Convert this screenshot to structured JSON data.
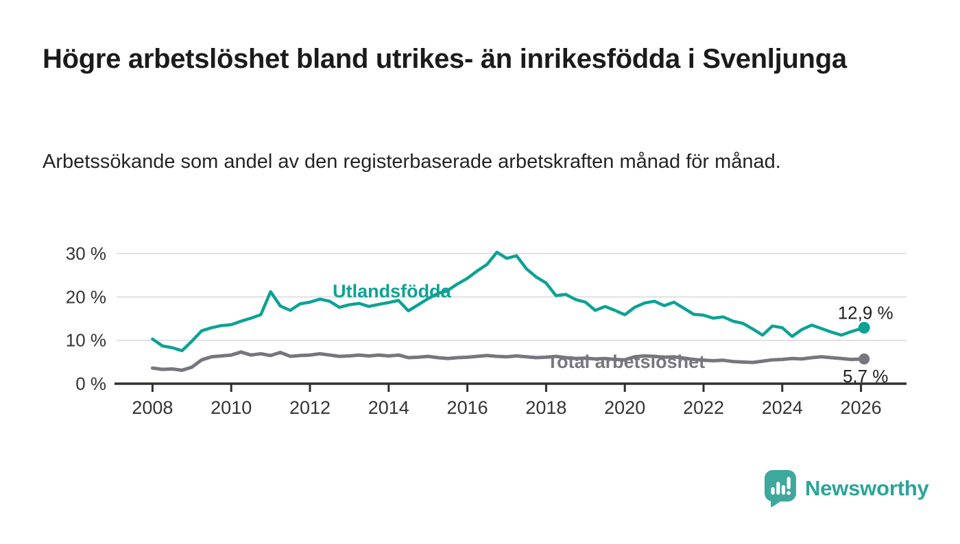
{
  "header": {
    "title": "Högre arbetslöshet bland utrikes- än inrikesfödda i Svenljunga",
    "subtitle": "Arbetssökande som andel av den registerbaserade arbetskraften månad för månad."
  },
  "colors": {
    "accent_teal": "#0ca295",
    "series_gray": "#77757e",
    "grid": "#dadada",
    "axis": "#2f2f2f",
    "axis_text": "#333333",
    "annotation_text": "#1f1f1f",
    "logo_teal": "#3fa89d",
    "logo_text_teal": "#2ba499"
  },
  "chart_data": {
    "type": "line",
    "x_unit": "decimal_year",
    "grid": "horizontal-light",
    "legend_position": "inline-labels",
    "xlim": [
      2007.1,
      2027.2
    ],
    "ylim": [
      0,
      32
    ],
    "x_ticks": [
      2008,
      2010,
      2012,
      2014,
      2016,
      2018,
      2020,
      2022,
      2024,
      2026
    ],
    "y_ticks": [
      {
        "value": 0,
        "label": "0 %"
      },
      {
        "value": 10,
        "label": "10 %"
      },
      {
        "value": 20,
        "label": "20 %"
      },
      {
        "value": 30,
        "label": "30 %"
      }
    ],
    "x": [
      2008,
      2008.25,
      2008.5,
      2008.75,
      2009,
      2009.25,
      2009.5,
      2009.75,
      2010,
      2010.25,
      2010.5,
      2010.75,
      2011,
      2011.25,
      2011.5,
      2011.75,
      2012,
      2012.25,
      2012.5,
      2012.75,
      2013,
      2013.25,
      2013.5,
      2013.75,
      2014,
      2014.25,
      2014.5,
      2014.75,
      2015,
      2015.25,
      2015.5,
      2015.75,
      2016,
      2016.25,
      2016.5,
      2016.75,
      2017,
      2017.25,
      2017.5,
      2017.75,
      2018,
      2018.25,
      2018.5,
      2018.75,
      2019,
      2019.25,
      2019.5,
      2019.75,
      2020,
      2020.25,
      2020.5,
      2020.75,
      2021,
      2021.25,
      2021.5,
      2021.75,
      2022,
      2022.25,
      2022.5,
      2022.75,
      2023,
      2023.25,
      2023.5,
      2023.75,
      2024,
      2024.25,
      2024.5,
      2024.75,
      2025,
      2025.25,
      2025.5,
      2025.75,
      2026.08
    ],
    "series": [
      {
        "name": "Utlandsfödda",
        "color": "#0ca295",
        "stroke_width": 4.5,
        "end_dot_radius": 8.5,
        "end_label": "12,9 %",
        "end_label_pos": "above",
        "values": [
          10.3,
          8.7,
          8.3,
          7.6,
          9.8,
          12.2,
          12.9,
          13.4,
          13.6,
          14.4,
          15.1,
          15.9,
          21.2,
          17.9,
          16.9,
          18.4,
          18.8,
          19.5,
          19.0,
          17.6,
          18.2,
          18.5,
          17.8,
          18.3,
          18.7,
          19.2,
          16.8,
          18.2,
          19.6,
          20.8,
          21.5,
          23.0,
          24.3,
          26.0,
          27.5,
          30.3,
          28.9,
          29.5,
          26.5,
          24.6,
          23.2,
          20.3,
          20.6,
          19.4,
          18.8,
          16.9,
          17.8,
          16.9,
          15.9,
          17.6,
          18.6,
          19.0,
          18.0,
          18.8,
          17.4,
          16.0,
          15.8,
          15.1,
          15.4,
          14.4,
          13.9,
          12.6,
          11.2,
          13.3,
          12.9,
          10.9,
          12.5,
          13.5,
          12.7,
          11.9,
          11.2,
          12.0,
          12.9
        ]
      },
      {
        "name": "Total arbetslöshet",
        "color": "#77757e",
        "stroke_width": 5,
        "end_dot_radius": 8,
        "end_label": "5,7 %",
        "end_label_pos": "below",
        "values": [
          3.6,
          3.3,
          3.4,
          3.1,
          3.8,
          5.5,
          6.2,
          6.4,
          6.6,
          7.3,
          6.6,
          6.9,
          6.5,
          7.2,
          6.3,
          6.5,
          6.6,
          6.9,
          6.6,
          6.3,
          6.4,
          6.6,
          6.4,
          6.6,
          6.4,
          6.6,
          6.0,
          6.1,
          6.3,
          6.0,
          5.8,
          6.0,
          6.1,
          6.3,
          6.5,
          6.3,
          6.2,
          6.4,
          6.2,
          6.0,
          6.1,
          6.3,
          6.0,
          5.8,
          5.9,
          5.7,
          5.8,
          5.6,
          5.5,
          6.2,
          6.4,
          6.3,
          6.1,
          6.2,
          5.9,
          5.6,
          5.4,
          5.3,
          5.4,
          5.1,
          5.0,
          4.9,
          5.2,
          5.5,
          5.6,
          5.8,
          5.7,
          6.0,
          6.2,
          6.0,
          5.8,
          5.6,
          5.7
        ]
      }
    ],
    "series_labels": [
      {
        "text": "Utlandsfödda",
        "x": 2014.08,
        "y_baseline_pct": 19.9,
        "color": "#0ca295"
      },
      {
        "text": "Total arbetslöshet",
        "x": 2020.03,
        "y_baseline_pct": 3.6,
        "color": "#77757e"
      }
    ]
  },
  "footer": {
    "brand": "Newsworthy"
  }
}
